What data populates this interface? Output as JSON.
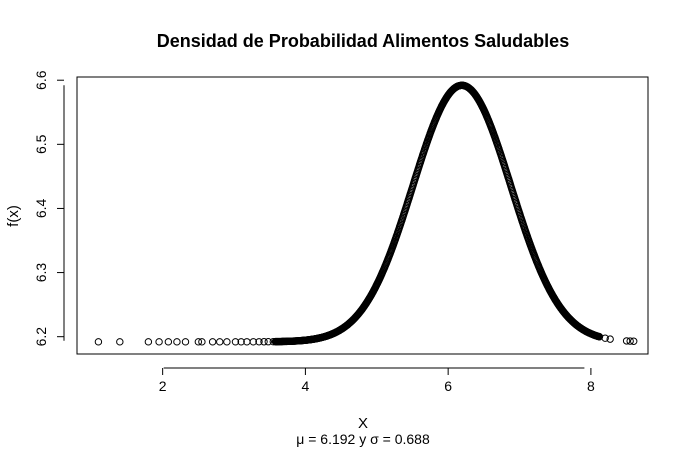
{
  "chart_data": {
    "type": "scatter",
    "title": "Densidad de Probabilidad Alimentos Saludables",
    "xlabel": "X",
    "ylabel": "f(x)",
    "subtitle": "μ = 6.192 y σ = 0.688",
    "xlim": [
      0.8,
      8.8
    ],
    "ylim": [
      6.173,
      6.605
    ],
    "x_ticks": [
      2,
      4,
      6,
      8
    ],
    "x_tick_labels": [
      "2",
      "4",
      "6",
      "8"
    ],
    "y_ticks": [
      6.2,
      6.3,
      6.4,
      6.5,
      6.6
    ],
    "y_tick_labels": [
      "6.2",
      "6.3",
      "6.4",
      "6.5",
      "6.6"
    ],
    "grid": false,
    "legend": "none",
    "marker": "open-circle",
    "series": [
      {
        "distribution": "normal",
        "mean": 6.192,
        "sd": 0.688,
        "baseline": 6.192,
        "scale": 0.4,
        "x_min": 1.1,
        "x_max": 8.6,
        "sparse_x": [
          1.1,
          1.4,
          1.8,
          1.95,
          2.08,
          2.2,
          2.32,
          2.5,
          2.55,
          2.7,
          2.8,
          2.9,
          3.02,
          3.1,
          3.18,
          3.27,
          3.35,
          3.42,
          3.48,
          3.55,
          8.2,
          8.27,
          8.5,
          8.55,
          8.6
        ]
      }
    ]
  },
  "colors": {
    "background": "#ffffff",
    "axis": "#000000",
    "marker": "#000000"
  }
}
